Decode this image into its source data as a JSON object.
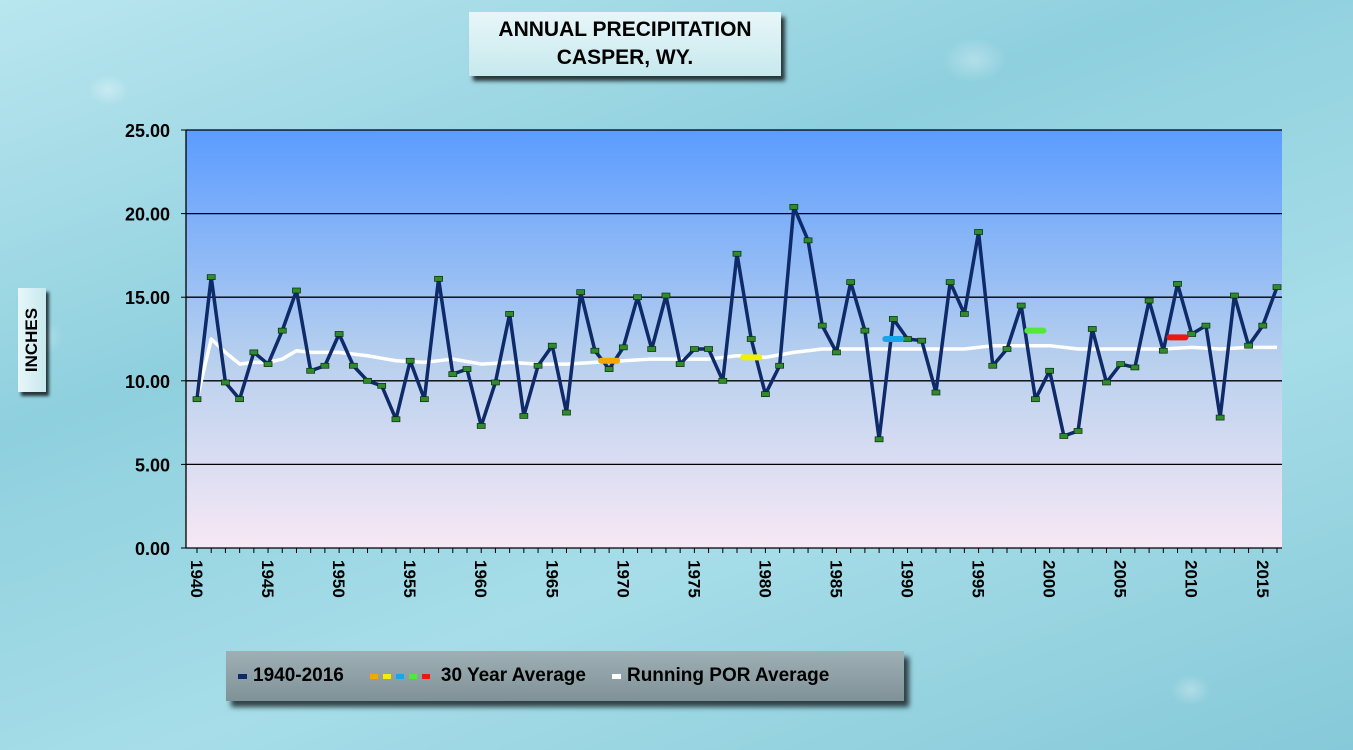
{
  "title": {
    "line1": "ANNUAL  PRECIPITATION",
    "line2": "CASPER, WY."
  },
  "legend": {
    "series1": "1940-2016",
    "series2": "30 Year Average",
    "series3": "Running POR Average"
  },
  "chart_data": {
    "type": "line",
    "title": "ANNUAL  PRECIPITATION CASPER, WY.",
    "ylabel": "INCHES",
    "xlabel": "",
    "ylim": [
      0,
      25
    ],
    "yticks": [
      "0.00",
      "5.00",
      "10.00",
      "15.00",
      "20.00",
      "25.00"
    ],
    "xlim": [
      1940,
      2016
    ],
    "xticks": [
      "1940",
      "1945",
      "1950",
      "1955",
      "1960",
      "1965",
      "1970",
      "1975",
      "1980",
      "1985",
      "1990",
      "1995",
      "2000",
      "2005",
      "2010",
      "2015"
    ],
    "grid": true,
    "legend_position": "bottom",
    "colors": {
      "annual": "#0f2a68",
      "running": "#ffffff",
      "marker": "#2e8b2e",
      "plot_top": "#5b9cff",
      "plot_bottom": "#f7e8f5"
    },
    "series": [
      {
        "name": "1940-2016",
        "x": [
          1940,
          1941,
          1942,
          1943,
          1944,
          1945,
          1946,
          1947,
          1948,
          1949,
          1950,
          1951,
          1952,
          1953,
          1954,
          1955,
          1956,
          1957,
          1958,
          1959,
          1960,
          1961,
          1962,
          1963,
          1964,
          1965,
          1966,
          1967,
          1968,
          1969,
          1970,
          1971,
          1972,
          1973,
          1974,
          1975,
          1976,
          1977,
          1978,
          1979,
          1980,
          1981,
          1982,
          1983,
          1984,
          1985,
          1986,
          1987,
          1988,
          1989,
          1990,
          1991,
          1992,
          1993,
          1994,
          1995,
          1996,
          1997,
          1998,
          1999,
          2000,
          2001,
          2002,
          2003,
          2004,
          2005,
          2006,
          2007,
          2008,
          2009,
          2010,
          2011,
          2012,
          2013,
          2014,
          2015,
          2016
        ],
        "values": [
          8.9,
          16.2,
          9.9,
          8.9,
          11.7,
          11.0,
          13.0,
          15.4,
          10.6,
          10.9,
          12.8,
          10.9,
          10.0,
          9.7,
          7.7,
          11.2,
          8.9,
          16.1,
          10.4,
          10.7,
          7.3,
          9.9,
          14.0,
          7.9,
          10.9,
          12.1,
          8.1,
          15.3,
          11.8,
          10.7,
          12.0,
          15.0,
          11.9,
          15.1,
          11.0,
          11.9,
          11.9,
          10.0,
          17.6,
          12.5,
          9.2,
          10.9,
          20.4,
          18.4,
          13.3,
          11.7,
          15.9,
          13.0,
          6.5,
          13.7,
          12.5,
          12.4,
          9.3,
          15.9,
          14.0,
          18.9,
          10.9,
          11.9,
          14.5,
          8.9,
          10.6,
          6.7,
          7.0,
          13.1,
          9.9,
          11.0,
          10.8,
          14.8,
          11.8,
          15.8,
          12.8,
          13.3,
          7.8,
          15.1,
          12.1,
          13.3,
          15.6
        ]
      },
      {
        "name": "30 Year Average",
        "points": [
          {
            "x": 1969,
            "y": 11.2,
            "color": "#f5a800"
          },
          {
            "x": 1979,
            "y": 11.4,
            "color": "#f0f000"
          },
          {
            "x": 1989,
            "y": 12.5,
            "color": "#16a7e8"
          },
          {
            "x": 1999,
            "y": 13.0,
            "color": "#55e83a"
          },
          {
            "x": 2009,
            "y": 12.6,
            "color": "#ee1515"
          }
        ]
      },
      {
        "name": "Running POR Average",
        "x": [
          1940,
          1941,
          1942,
          1943,
          1944,
          1945,
          1946,
          1947,
          1948,
          1950,
          1952,
          1954,
          1956,
          1958,
          1960,
          1962,
          1964,
          1966,
          1968,
          1970,
          1972,
          1974,
          1976,
          1978,
          1980,
          1982,
          1984,
          1986,
          1988,
          1990,
          1992,
          1994,
          1996,
          1998,
          2000,
          2002,
          2004,
          2006,
          2008,
          2010,
          2012,
          2014,
          2016
        ],
        "values": [
          8.9,
          12.5,
          11.7,
          11.0,
          11.1,
          11.1,
          11.3,
          11.8,
          11.7,
          11.7,
          11.5,
          11.2,
          11.1,
          11.3,
          11.0,
          11.1,
          11.0,
          11.0,
          11.1,
          11.2,
          11.3,
          11.3,
          11.3,
          11.5,
          11.4,
          11.7,
          11.9,
          11.9,
          11.9,
          11.9,
          11.9,
          11.9,
          12.1,
          12.1,
          12.1,
          11.9,
          11.9,
          11.9,
          11.9,
          12.0,
          11.9,
          12.0,
          12.0
        ]
      }
    ]
  }
}
